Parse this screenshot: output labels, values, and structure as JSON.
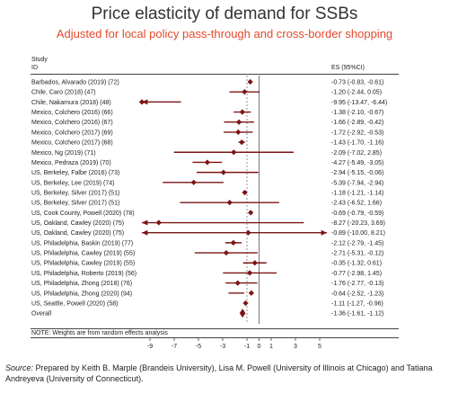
{
  "title": "Price elasticity of demand for SSBs",
  "subtitle": "Adjusted for local policy pass-through and cross-border shopping",
  "col_study": "Study",
  "col_id": "ID",
  "col_es": "ES (95%CI)",
  "note": "NOTE: Weights are from random effects analysis",
  "source_label": "Source:",
  "source_text": " Prepared by Keith B. Marple (Brandeis University), Lisa M. Powell (University of Illinois at Chicago) and Tatiana Andreyeva (University of Connecticut).",
  "colors": {
    "mark": "#7b1414",
    "title": "#333333",
    "subtitle": "#e2492c"
  },
  "chart_data": {
    "type": "forest",
    "xaxis": {
      "min": -10,
      "max": 6,
      "ticks": [
        -9,
        -7,
        -5,
        -3,
        -1,
        0,
        1,
        3,
        5
      ],
      "reference_line": -1
    },
    "studies": [
      {
        "label": "Barbados, Alvarado (2019) (72)",
        "es": -0.73,
        "lo": -0.83,
        "hi": -0.61,
        "ci_text": "-0.73 (-0.83, -0.61)"
      },
      {
        "label": "Chile, Caro (2018) (47)",
        "es": -1.2,
        "lo": -2.44,
        "hi": 0.05,
        "ci_text": "-1.20 (-2.44, 0.05)"
      },
      {
        "label": "Chile, Nakamura (2018) (48)",
        "es": -9.95,
        "lo": -13.47,
        "hi": -6.44,
        "ci_text": "-9.95 (-13.47, -6.44)"
      },
      {
        "label": "Mexico, Colchero (2016) (66)",
        "es": -1.38,
        "lo": -2.1,
        "hi": -0.67,
        "ci_text": "-1.38 (-2.10, -0.67)"
      },
      {
        "label": "Mexico, Colchero (2016) (67)",
        "es": -1.66,
        "lo": -2.89,
        "hi": -0.42,
        "ci_text": "-1.66 (-2.89, -0.42)"
      },
      {
        "label": "Mexico, Colchero (2017) (69)",
        "es": -1.72,
        "lo": -2.92,
        "hi": -0.53,
        "ci_text": "-1.72 (-2.92, -0.53)"
      },
      {
        "label": "Mexico, Colchero (2017) (68)",
        "es": -1.43,
        "lo": -1.7,
        "hi": -1.16,
        "ci_text": "-1.43 (-1.70, -1.16)"
      },
      {
        "label": "Mexico, Ng (2019) (71)",
        "es": -2.09,
        "lo": -7.02,
        "hi": 2.85,
        "ci_text": "-2.09 (-7.02, 2.85)"
      },
      {
        "label": "Mexico, Pedraza (2019) (70)",
        "es": -4.27,
        "lo": -5.49,
        "hi": -3.05,
        "ci_text": "-4.27 (-5.49, -3.05)"
      },
      {
        "label": "US, Berkeley, Falbe (2016) (73)",
        "es": -2.94,
        "lo": -5.15,
        "hi": -0.06,
        "ci_text": "-2.94 (-5.15, -0.06)"
      },
      {
        "label": "US, Berkeley, Lee (2019) (74)",
        "es": -5.39,
        "lo": -7.94,
        "hi": -2.94,
        "ci_text": "-5.39 (-7.94, -2.94)"
      },
      {
        "label": "US, Berkeley, Silver (2017) (51)",
        "es": -1.18,
        "lo": -1.21,
        "hi": -1.14,
        "ci_text": "-1.18 (-1.21, -1.14)"
      },
      {
        "label": "US, Berkeley, Silver (2017) (51)",
        "es": -2.43,
        "lo": -6.52,
        "hi": 1.66,
        "ci_text": "-2.43 (-6.52, 1.66)"
      },
      {
        "label": "US, Cook County, Powell (2020) (78)",
        "es": -0.69,
        "lo": -0.79,
        "hi": -0.59,
        "ci_text": "-0.69 (-0.79, -0.59)"
      },
      {
        "label": "US, Oakland, Cawley (2020) (75)",
        "es": -8.27,
        "lo": -20.23,
        "hi": 3.69,
        "ci_text": "-8.27 (-20.23, 3.69)"
      },
      {
        "label": "US, Oakland, Cawley (2020) (75)",
        "es": -0.89,
        "lo": -10.0,
        "hi": 8.21,
        "ci_text": "-0.89 (-10.00, 8.21)"
      },
      {
        "label": "US, Philadelphia, Baskin (2019) (77)",
        "es": -2.12,
        "lo": -2.79,
        "hi": -1.45,
        "ci_text": "-2.12 (-2.79, -1.45)"
      },
      {
        "label": "US, Philadelphia, Cawley (2019) (55)",
        "es": -2.71,
        "lo": -5.31,
        "hi": -0.12,
        "ci_text": "-2.71 (-5.31, -0.12)"
      },
      {
        "label": "US, Philadelphia, Cawley (2019) (55)",
        "es": -0.35,
        "lo": -1.32,
        "hi": 0.61,
        "ci_text": "-0.35 (-1.32, 0.61)"
      },
      {
        "label": "US, Philadelphia, Roberto (2019) (56)",
        "es": -0.77,
        "lo": -2.98,
        "hi": 1.45,
        "ci_text": "-0.77 (-2.98, 1.45)"
      },
      {
        "label": "US, Philadelphia, Zhong (2018) (76)",
        "es": -1.76,
        "lo": -2.77,
        "hi": -0.13,
        "ci_text": "-1.76 (-2.77, -0.13)"
      },
      {
        "label": "US, Philadelphia, Zhong (2020) (94)",
        "es": -0.64,
        "lo": -2.52,
        "hi": -1.23,
        "ci_text": "-0.64 (-2.52, -1.23)"
      },
      {
        "label": "US, Seattle, Powell (2020) (58)",
        "es": -1.11,
        "lo": -1.27,
        "hi": -0.96,
        "ci_text": "-1.11 (-1.27, -0.96)"
      }
    ],
    "overall": {
      "label": "Overall",
      "es": -1.36,
      "lo": -1.61,
      "hi": -1.12,
      "ci_text": "-1.36 (-1.61, -1.12)"
    }
  }
}
